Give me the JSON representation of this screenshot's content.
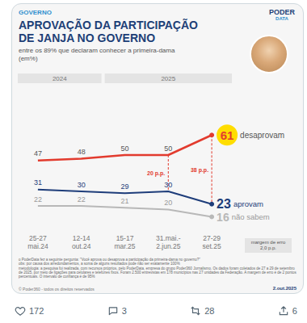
{
  "header": {
    "section": "GOVERNO",
    "logo": [
      "PODER",
      "DATA"
    ]
  },
  "chart_data": {
    "type": "line",
    "title": "APROVAÇÃO DA PARTICIPAÇÃO\nDE JANJA NO GOVERNO",
    "subtitle": "entre os 89% que declaram conhecer a primeira-dama\n(em%)",
    "categories": [
      "25-27\nmai.24",
      "12-14\nout.24",
      "15-17\nmar.25",
      "31.mai.-\n2.jun.25",
      "27-29\nset.25"
    ],
    "periods": [
      {
        "label": "2024",
        "categories": [
          "25-27\nmai.24",
          "12-14\nout.24"
        ]
      },
      {
        "label": "2025",
        "categories": [
          "15-17\nmar.25",
          "31.mai.-\n2.jun.25",
          "27-29\nset.25"
        ]
      }
    ],
    "series": [
      {
        "name": "desaprovam",
        "color": "#e23b2e",
        "values": [
          47,
          48,
          50,
          50,
          61
        ]
      },
      {
        "name": "aprovam",
        "color": "#1e3d7a",
        "values": [
          31,
          30,
          29,
          30,
          23
        ]
      },
      {
        "name": "não sabem",
        "color": "#b8b8b8",
        "values": [
          22,
          22,
          21,
          20,
          16
        ]
      }
    ],
    "ylim": [
      10,
      70
    ],
    "yticks": [
      10,
      70
    ],
    "grid": false,
    "data_labels": true,
    "tick_labels": "x",
    "annotations": [
      {
        "text": "20 p.p.",
        "category": "31.mai.-\n2.jun.25",
        "from": 50,
        "to": 30
      },
      {
        "text": "38 p.p.",
        "category": "27-29\nset.25",
        "from": 61,
        "to": 23
      }
    ],
    "margin_note": "margem de erro\n2,0 p.p.",
    "note": "o PoderData fez a seguinte pergunta: \"Você aprova ou desaprova a participação da primeira-dama no governo?\"\nobs: por causa dos arredondamentos, a soma de alguns resultados pode não ser exatamente 100%\nmetodologia: a pesquisa foi realizada, com recursos próprios, pelo PoderData, empresa do grupo Poder360 Jornalismo. Os dados foram coletados de 27 a 29 de setembro de 2025, por meio de ligações para celulares e telefones fixos. Foram 2.500 entrevistas em 178 municípios nas 27 unidades da Federação. A margem de erro é de 2 pontos percentuais. O intervalo de confiança é de 95%",
    "credit": "© Poder360 - todos os direitos reservados",
    "date": "2.out.2025"
  },
  "tweet": {
    "likes": 172,
    "replies": 3,
    "reposts": 28,
    "shares": 6
  }
}
